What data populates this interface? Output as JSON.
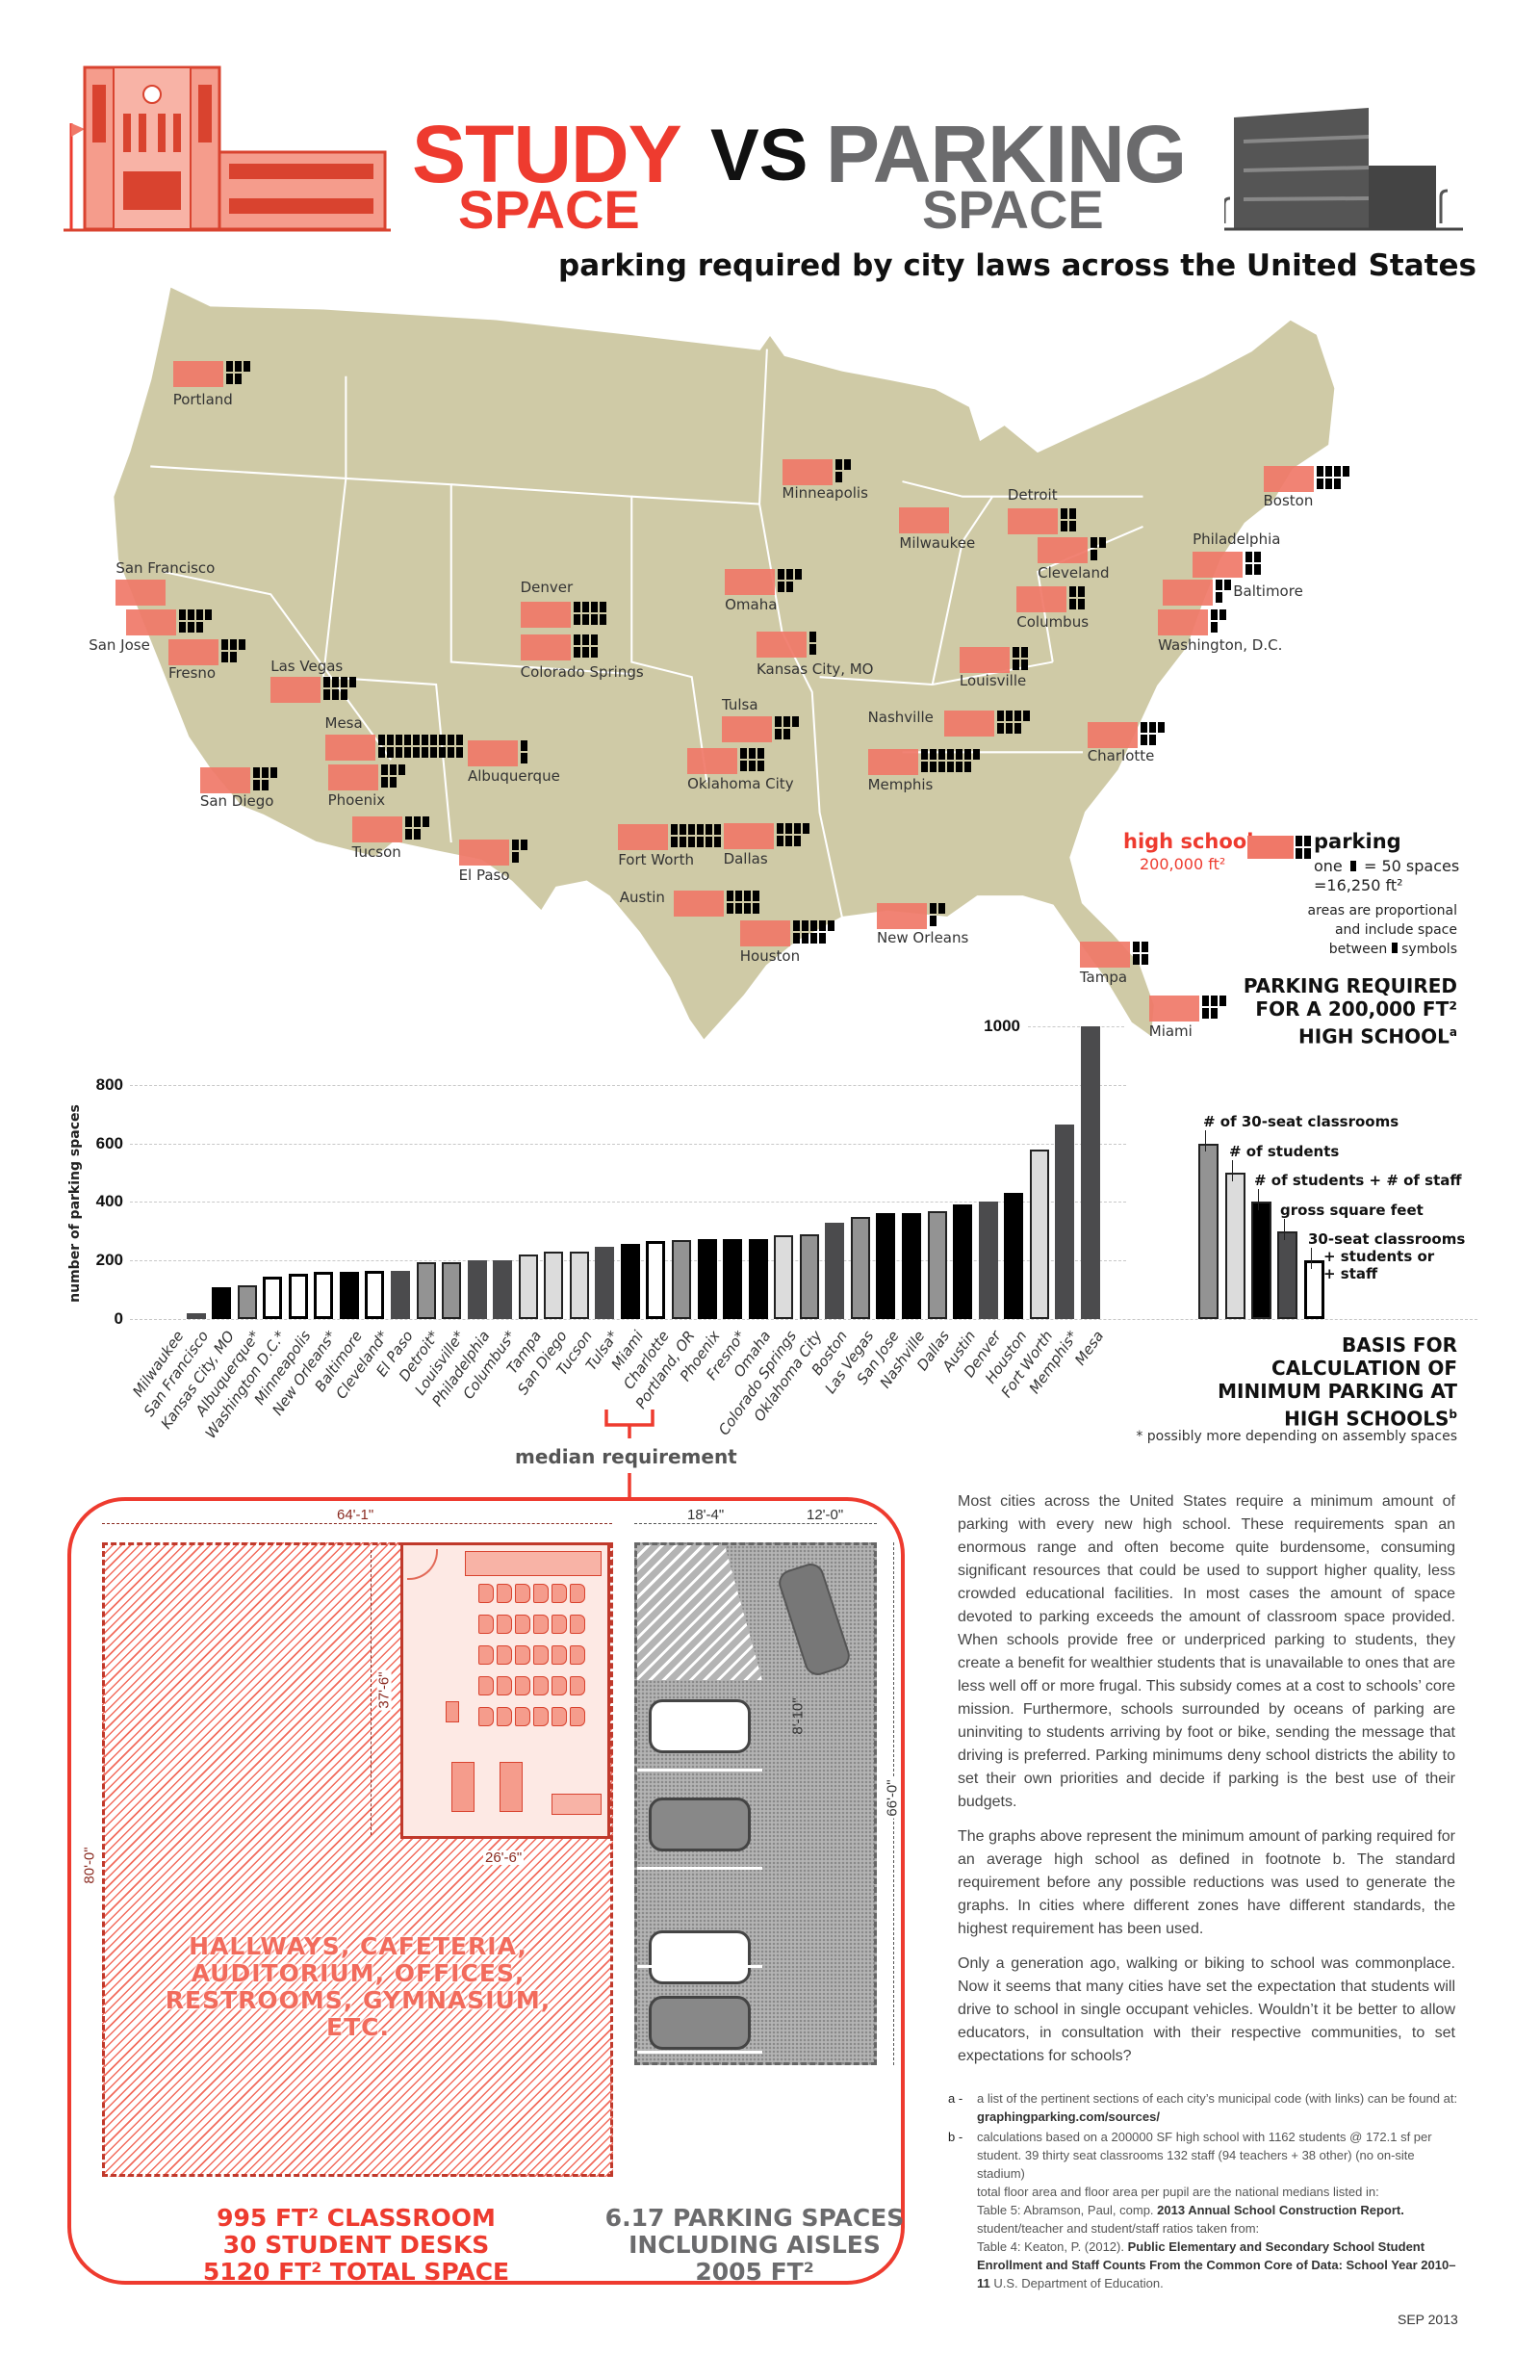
{
  "header": {
    "title_study": "STUDY",
    "title_study_space": "SPACE",
    "title_vs": "VS",
    "title_parking": "PARKING",
    "title_parking_space": "SPACE",
    "subtitle": "parking required by city laws across the United States"
  },
  "colors": {
    "accent_red": "#ee3b2f",
    "school_marker": "#f07868",
    "map_land": "#cfcaa6",
    "title_gray": "#6b6b6d"
  },
  "map": {
    "cities": [
      {
        "label": "Portland",
        "spaces": 270
      },
      {
        "label": "Minneapolis",
        "spaces": 155
      },
      {
        "label": "Boston",
        "spaces": 330
      },
      {
        "label": "Detroit",
        "spaces": 193
      },
      {
        "label": "Milwaukee",
        "spaces": 0
      },
      {
        "label": "Philadelphia",
        "spaces": 200
      },
      {
        "label": "Cleveland",
        "spaces": 163
      },
      {
        "label": "Baltimore",
        "spaces": 162
      },
      {
        "label": "Columbus",
        "spaces": 200
      },
      {
        "label": "Washington, D.C.",
        "spaces": 145
      },
      {
        "label": "Omaha",
        "spaces": 273
      },
      {
        "label": "San Francisco",
        "spaces": 20
      },
      {
        "label": "San Jose",
        "spaces": 363
      },
      {
        "label": "Fresno",
        "spaces": 273
      },
      {
        "label": "Denver",
        "spaces": 400
      },
      {
        "label": "Colorado Springs",
        "spaces": 287
      },
      {
        "label": "Kansas City, MO",
        "spaces": 110
      },
      {
        "label": "Louisville",
        "spaces": 193
      },
      {
        "label": "Las Vegas",
        "spaces": 350
      },
      {
        "label": "Mesa",
        "spaces": 1000
      },
      {
        "label": "Albuquerque",
        "spaces": 115
      },
      {
        "label": "Tulsa",
        "spaces": 248
      },
      {
        "label": "Oklahoma City",
        "spaces": 290
      },
      {
        "label": "Nashville",
        "spaces": 363
      },
      {
        "label": "Memphis",
        "spaces": 664
      },
      {
        "label": "Charlotte",
        "spaces": 268
      },
      {
        "label": "Phoenix",
        "spaces": 273
      },
      {
        "label": "San Diego",
        "spaces": 230
      },
      {
        "label": "Tucson",
        "spaces": 230
      },
      {
        "label": "El Paso",
        "spaces": 166
      },
      {
        "label": "Fort Worth",
        "spaces": 578
      },
      {
        "label": "Dallas",
        "spaces": 368
      },
      {
        "label": "Austin",
        "spaces": 390
      },
      {
        "label": "Houston",
        "spaces": 430
      },
      {
        "label": "New Orleans",
        "spaces": 160
      },
      {
        "label": "Tampa",
        "spaces": 220
      },
      {
        "label": "Miami",
        "spaces": 258
      }
    ],
    "legend": {
      "school_label": "high school",
      "school_area": "200,000 ft²",
      "parking_label": "parking",
      "parking_unit_pre": "one",
      "parking_unit_post": "= 50 spaces",
      "parking_area": "=16,250 ft²",
      "note_1": "areas are proportional",
      "note_2": "and include space",
      "note_3_pre": "between",
      "note_3_post": "symbols"
    }
  },
  "chart_heading": {
    "line1": "PARKING REQUIRED",
    "line2": "FOR A 200,000 FT²",
    "line3": "HIGH SCHOOL",
    "footnote_mark": "a"
  },
  "chart_data": {
    "type": "bar",
    "ylabel": "number of parking spaces",
    "xlabel": "",
    "ylim": [
      0,
      1000
    ],
    "yticks": [
      "0",
      "200",
      "400",
      "600",
      "800",
      "1000"
    ],
    "grid": true,
    "categories": [
      "Milwaukee",
      "San Francisco",
      "Kansas City, MO",
      "Albuquerque*",
      "Washington D.C.*",
      "Minneapolis",
      "New Orleans*",
      "Baltimore",
      "Cleveland*",
      "El Paso",
      "Detroit*",
      "Louisville*",
      "Philadelphia",
      "Columbus*",
      "Tampa",
      "San Diego",
      "Tucson",
      "Tulsa*",
      "Miami",
      "Charlotte",
      "Portland, OR",
      "Phoenix",
      "Fresno*",
      "Omaha",
      "Colorado Springs",
      "Oklahoma City",
      "Boston",
      "Las Vegas",
      "San Jose",
      "Nashville",
      "Dallas",
      "Austin",
      "Denver",
      "Houston",
      "Fort Worth",
      "Memphis*",
      "Mesa"
    ],
    "values": [
      0,
      20,
      110,
      115,
      145,
      155,
      160,
      162,
      163,
      166,
      193,
      193,
      200,
      200,
      220,
      230,
      230,
      248,
      258,
      268,
      270,
      273,
      273,
      273,
      287,
      290,
      330,
      350,
      363,
      363,
      368,
      390,
      400,
      430,
      578,
      664,
      1000
    ],
    "basis": [
      "gsf",
      "gsf",
      "students_staff",
      "classrooms",
      "combo",
      "combo",
      "combo",
      "students_staff",
      "combo",
      "gsf",
      "classrooms",
      "classrooms",
      "gsf",
      "gsf",
      "students",
      "students",
      "students",
      "gsf",
      "students_staff",
      "combo",
      "classrooms",
      "students_staff",
      "students_staff",
      "students_staff",
      "students",
      "classrooms",
      "gsf",
      "classrooms",
      "students_staff",
      "students_staff",
      "classrooms",
      "students_staff",
      "gsf",
      "students_staff",
      "students",
      "gsf",
      "gsf"
    ],
    "median_label": "median requirement",
    "median_between": [
      "Charlotte",
      "Portland, OR"
    ]
  },
  "basis_legend": {
    "items": [
      {
        "key": "classrooms",
        "label": "# of 30-seat classrooms",
        "color": "#939393"
      },
      {
        "key": "students",
        "label": "# of students",
        "color": "#dcdcdc"
      },
      {
        "key": "students_staff",
        "label": "# of students + # of staff",
        "color": "#000000"
      },
      {
        "key": "gsf",
        "label": "gross square feet",
        "color": "#4b4b4d"
      },
      {
        "key": "combo",
        "label": "30-seat classrooms",
        "label_2": "+ students or",
        "label_3": "+ staff",
        "color": "#ffffff"
      }
    ],
    "title_1": "BASIS FOR",
    "title_2": "CALCULATION OF",
    "title_3": "MINIMUM PARKING AT",
    "title_4": "HIGH SCHOOLS",
    "footnote_mark": "b",
    "asterisk_note": "* possibly more depending on assembly spaces"
  },
  "floorplan": {
    "dim_width_school": "64'-1\"",
    "dim_stall": "18'-4\"",
    "dim_aisle": "12'-0\"",
    "dim_class_depth": "37'-6\"",
    "dim_class_width": "26'-6\"",
    "dim_school_depth": "80'-0\"",
    "dim_stall_width": "8'-10\"",
    "dim_lot_depth": "66'-0\"",
    "hatch_text_1": "HALLWAYS, CAFETERIA,",
    "hatch_text_2": "AUDITORIUM, OFFICES,",
    "hatch_text_3": "RESTROOMS, GYMNASIUM,",
    "hatch_text_4": "ETC.",
    "school_caption_1": "995 FT² CLASSROOM",
    "school_caption_2": "30 STUDENT DESKS",
    "school_caption_3": "5120 FT² TOTAL SPACE",
    "parking_caption_1": "6.17 PARKING SPACES",
    "parking_caption_2": "INCLUDING AISLES",
    "parking_caption_3": "2005 FT²"
  },
  "article": {
    "p1": "Most cities across the United States require a minimum amount of parking with every new high school. These requirements span an enormous range and often become quite burdensome, consuming significant resources that could be used to support higher quality, less crowded educational facilities. In most cases the amount of space devoted to parking exceeds the amount of classroom space provided.  When schools provide free or underpriced parking to students, they create a benefit for wealthier students that is unavailable to ones that are less well off or more frugal.  This subsidy comes at a cost to schools’ core mission. Furthermore, schools surrounded by oceans of parking are uninviting to students arriving by foot or bike, sending the message that driving is preferred. Parking minimums deny school districts the ability to set their own priorities and decide if parking is the best use of their budgets.",
    "p2": "The graphs above represent the minimum amount of parking required for an average high school as defined in footnote b. The standard requirement before any possible reductions was used to generate the graphs. In cities where different zones have different standards, the highest requirement has been used.",
    "p3": "Only a generation ago, walking or biking to school was commonplace. Now it seems that many cities have set the expectation that students will drive to school in single occupant vehicles. Wouldn’t it be better to allow educators, in consultation with their respective communities, to set expectations for schools?"
  },
  "footnotes": {
    "a_key": "a -",
    "a_text": "a list of the pertinent sections of each city’s municipal code (with links) can be found at:",
    "a_link": "graphingparking.com/sources/",
    "b_key": "b -",
    "b_text_1": "calculations based on a 200000 SF high school with 1162 students @ 172.1 sf per student. 39 thirty seat classrooms 132 staff (94 teachers + 38 other)  (no on-site stadium)",
    "b_text_2": "total floor area and floor area per pupil are the national medians listed in:",
    "b_text_3_pre": "Table 5: Abramson, Paul, comp.",
    "b_text_3_bold": "2013 Annual School Construction Report.",
    "b_text_4": "student/teacher and student/staff ratios taken from:",
    "b_text_5_pre": "Table 4: Keaton, P. (2012).",
    "b_text_5_bold": "Public Elementary and Secondary School Student Enrollment and Staff Counts From the Common Core of Data: School Year 2010–11",
    "b_text_5_post": "U.S. Department of Education."
  },
  "date": "SEP 2013"
}
